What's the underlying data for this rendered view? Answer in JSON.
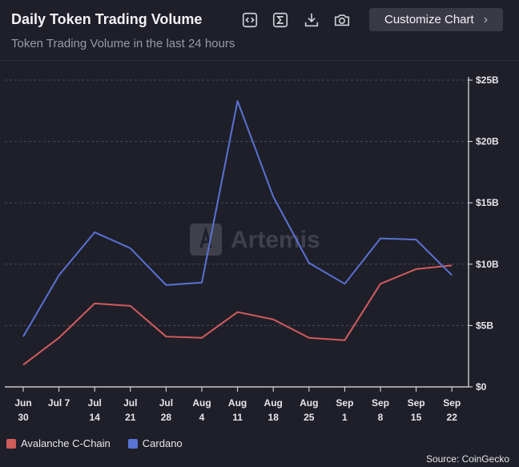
{
  "header": {
    "title": "Daily Token Trading Volume",
    "subtitle": "Token Trading Volume in the last 24 hours",
    "customize_label": "Customize Chart",
    "tools": [
      "embed-icon",
      "sum-icon",
      "download-icon",
      "camera-icon"
    ]
  },
  "watermark": "Artemis",
  "source": "Source: CoinGecko",
  "colors": {
    "avalanche": "#d15c5c",
    "cardano": "#5a72d4",
    "background": "#1f1f2a",
    "grid": "#4a4a58"
  },
  "chart_data": {
    "type": "line",
    "categories": [
      [
        "Jun",
        "30"
      ],
      [
        "Jul 7"
      ],
      [
        "Jul",
        "14"
      ],
      [
        "Jul",
        "21"
      ],
      [
        "Jul",
        "28"
      ],
      [
        "Aug",
        "4"
      ],
      [
        "Aug",
        "11"
      ],
      [
        "Aug",
        "18"
      ],
      [
        "Aug",
        "25"
      ],
      [
        "Sep",
        "1"
      ],
      [
        "Sep",
        "8"
      ],
      [
        "Sep",
        "15"
      ],
      [
        "Sep",
        "22"
      ]
    ],
    "y_ticks": [
      "$0",
      "$5B",
      "$10B",
      "$15B",
      "$20B",
      "$25B"
    ],
    "ylim": [
      0,
      25
    ],
    "ytick_values": [
      0,
      5,
      10,
      15,
      20,
      25
    ],
    "y_axis_position": "right",
    "grid": true,
    "legend_position": "bottom-left",
    "series": [
      {
        "name": "Avalanche C-Chain",
        "color": "#d15c5c",
        "values": [
          1.8,
          4.0,
          6.8,
          6.6,
          4.1,
          4.0,
          6.1,
          5.5,
          4.0,
          3.8,
          8.4,
          9.6,
          9.9
        ]
      },
      {
        "name": "Cardano",
        "color": "#5a72d4",
        "values": [
          4.1,
          9.1,
          12.6,
          11.3,
          8.3,
          8.5,
          23.3,
          15.5,
          10.1,
          8.4,
          12.1,
          12.0,
          9.1
        ]
      }
    ]
  }
}
